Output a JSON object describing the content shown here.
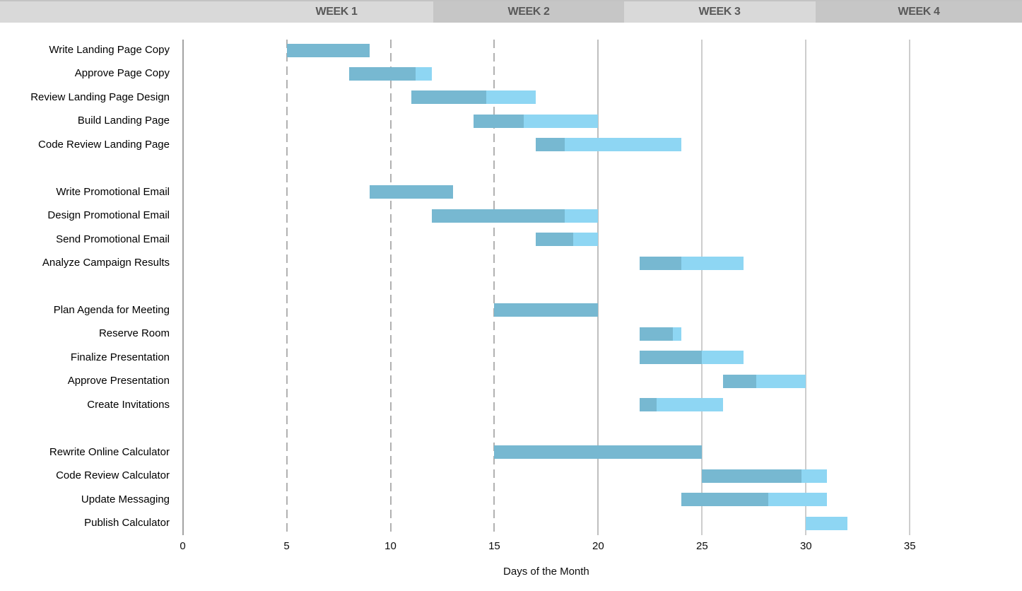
{
  "header": {
    "weeks": [
      {
        "label": "WEEK 1"
      },
      {
        "label": "WEEK 2"
      },
      {
        "label": "WEEK 3"
      },
      {
        "label": "WEEK 4"
      }
    ]
  },
  "chart_data": {
    "type": "bar",
    "variant": "gantt",
    "title": "",
    "xlabel": "Days of the Month",
    "ylabel": "",
    "x_ticks": [
      0,
      5,
      10,
      15,
      20,
      25,
      30,
      35
    ],
    "xlim": [
      0,
      40
    ],
    "grid": "vertical",
    "legend": "none",
    "tasks": [
      {
        "name": "Write Landing Page Copy",
        "start": 5,
        "end": 9,
        "percent_complete": 100,
        "group": 1
      },
      {
        "name": "Approve Page Copy",
        "start": 8,
        "end": 12,
        "percent_complete": 80,
        "group": 1
      },
      {
        "name": "Review Landing Page Design",
        "start": 11,
        "end": 17,
        "percent_complete": 60,
        "group": 1
      },
      {
        "name": "Build Landing Page",
        "start": 14,
        "end": 20,
        "percent_complete": 40,
        "group": 1
      },
      {
        "name": "Code Review Landing Page",
        "start": 17,
        "end": 24,
        "percent_complete": 20,
        "group": 1
      },
      {
        "name": "Write Promotional Email",
        "start": 9,
        "end": 13,
        "percent_complete": 100,
        "group": 2
      },
      {
        "name": "Design Promotional Email",
        "start": 12,
        "end": 20,
        "percent_complete": 80,
        "group": 2
      },
      {
        "name": "Send Promotional Email",
        "start": 17,
        "end": 20,
        "percent_complete": 60,
        "group": 2
      },
      {
        "name": "Analyze Campaign Results",
        "start": 22,
        "end": 27,
        "percent_complete": 40,
        "group": 2
      },
      {
        "name": "Plan Agenda for Meeting",
        "start": 15,
        "end": 20,
        "percent_complete": 100,
        "group": 3
      },
      {
        "name": "Reserve Room",
        "start": 22,
        "end": 24,
        "percent_complete": 80,
        "group": 3
      },
      {
        "name": "Finalize Presentation",
        "start": 22,
        "end": 27,
        "percent_complete": 60,
        "group": 3
      },
      {
        "name": "Approve Presentation",
        "start": 26,
        "end": 30,
        "percent_complete": 40,
        "group": 3
      },
      {
        "name": "Create Invitations",
        "start": 22,
        "end": 26,
        "percent_complete": 20,
        "group": 3
      },
      {
        "name": "Rewrite Online Calculator",
        "start": 15,
        "end": 25,
        "percent_complete": 100,
        "group": 4
      },
      {
        "name": "Code Review Calculator",
        "start": 25,
        "end": 31,
        "percent_complete": 80,
        "group": 4
      },
      {
        "name": "Update Messaging",
        "start": 24,
        "end": 31,
        "percent_complete": 60,
        "group": 4
      },
      {
        "name": "Publish Calculator",
        "start": 30,
        "end": 32,
        "percent_complete": 0,
        "group": 4
      }
    ]
  },
  "colors": {
    "bar_complete": "#77b8d1",
    "bar_remaining": "#8ed6f3",
    "header_band_light": "#d9d9d9",
    "header_band_dark": "#c6c6c6",
    "header_text": "#595959",
    "axis_line": "#a3a3a3",
    "gridline_dashed": "#b1b1b1",
    "gridline_solid_mid": "#bfbfbf",
    "gridline_solid_light": "#cdcdcd",
    "text": "#000000"
  }
}
